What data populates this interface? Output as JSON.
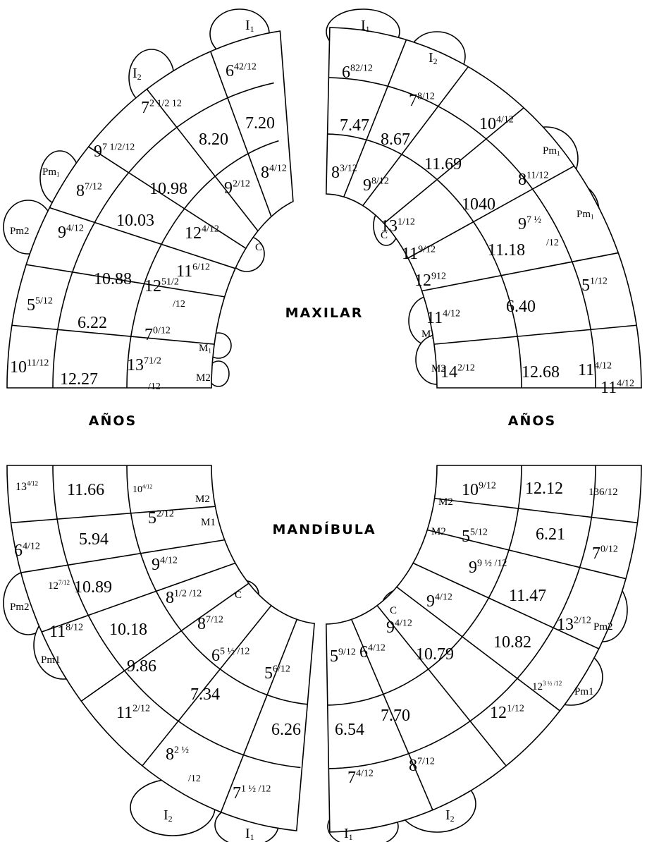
{
  "maxilar": {
    "title": "MAXILAR",
    "upper_left": {
      "teeth": [
        {
          "base": "I",
          "sub": "1"
        },
        {
          "base": "I",
          "sub": "2"
        },
        {
          "base": "Pm",
          "sub": "1"
        },
        {
          "text": "Pm2"
        },
        {
          "text": "C"
        },
        {
          "base": "M",
          "sub": "1"
        },
        {
          "text": "M2"
        }
      ],
      "ages": [
        {
          "base": "6",
          "sup": "42/12"
        },
        {
          "base": "7",
          "sup": "2 1/2 12"
        },
        {
          "text": "7.20"
        },
        {
          "base": "9",
          "sup": "7 1/2/12"
        },
        {
          "text": "8.20"
        },
        {
          "base": "8",
          "sup": "7/12"
        },
        {
          "text": "10.98"
        },
        {
          "base": "9",
          "sup": "2/12"
        },
        {
          "base": "8",
          "sup": "4/12"
        },
        {
          "base": "9",
          "sup": "4/12"
        },
        {
          "text": "10.03"
        },
        {
          "base": "12",
          "sup": "4/12"
        },
        {
          "base": "11",
          "sup": "6/12"
        },
        {
          "text": "10.88"
        },
        {
          "base": "12",
          "sup": "51/2",
          "cont": "/12"
        },
        {
          "base": "5",
          "sup": "5/12"
        },
        {
          "text": "6.22"
        },
        {
          "base": "7",
          "sup": "0/12"
        },
        {
          "base": "10",
          "sup": "11/12"
        },
        {
          "text": "12.27"
        },
        {
          "base": "13",
          "sup": "71/2",
          "cont": "/12"
        }
      ]
    },
    "upper_right": {
      "teeth": [
        {
          "base": "I",
          "sub": "1"
        },
        {
          "base": "I",
          "sub": "2"
        },
        {
          "base": "Pm",
          "sub": "1"
        },
        {
          "base": "Pm",
          "sub": "1"
        },
        {
          "text": "C"
        },
        {
          "base": "M",
          "sub": "1"
        },
        {
          "text": "M2"
        }
      ],
      "ages": [
        {
          "base": "6",
          "sup": "82/12"
        },
        {
          "base": "7",
          "sup": "8/12"
        },
        {
          "text": "7.47"
        },
        {
          "text": "8.67"
        },
        {
          "base": "10",
          "sup": "4/12"
        },
        {
          "base": "8",
          "sup": "3/12"
        },
        {
          "base": "9",
          "sup": "8/12"
        },
        {
          "text": "11.69"
        },
        {
          "base": "8",
          "sup": "11/12"
        },
        {
          "base": "13",
          "sup": "1/12"
        },
        {
          "text": "1040"
        },
        {
          "base": "9",
          "sup": "7 ½",
          "cont": "/12"
        },
        {
          "base": "11",
          "sup": "9/12"
        },
        {
          "base": "12",
          "sup": "912"
        },
        {
          "text": "11.18"
        },
        {
          "base": "5",
          "sup": "1/12"
        },
        {
          "base": "11",
          "sup": "4/12"
        },
        {
          "text": "6.40"
        },
        {
          "base": "14",
          "sup": "2/12"
        },
        {
          "text": "12.68"
        },
        {
          "base": "11",
          "sup": "4/12"
        },
        {
          "base": "11",
          "sup": "4/12"
        }
      ]
    }
  },
  "age_labels": [
    "AÑOS",
    "AÑOS"
  ],
  "mandibula": {
    "title": "MANDÍBULA",
    "lower_left": {
      "teeth": [
        {
          "text": "M2"
        },
        {
          "text": "M1"
        },
        {
          "text": "Pm2"
        },
        {
          "text": "C"
        },
        {
          "text": "Pm1"
        },
        {
          "base": "I",
          "sub": "2"
        },
        {
          "base": "I",
          "sub": "1"
        }
      ],
      "ages": [
        {
          "base": "13",
          "sup": "4/12"
        },
        {
          "text": "11.66"
        },
        {
          "base": "10",
          "sup": "4/12"
        },
        {
          "base": "5",
          "sup": "2/12"
        },
        {
          "base": "6",
          "sup": "4/12"
        },
        {
          "text": "5.94"
        },
        {
          "base": "9",
          "sup": "4/12"
        },
        {
          "base": "12",
          "sup": "7/12"
        },
        {
          "text": "10.89"
        },
        {
          "base": "8",
          "sup": "1/2 /12"
        },
        {
          "base": "11",
          "sup": "8/12"
        },
        {
          "text": "10.18"
        },
        {
          "base": "8",
          "sup": "7/12"
        },
        {
          "base": "6",
          "sup": "5 ½ /12"
        },
        {
          "text": "9.86"
        },
        {
          "base": "5",
          "sup": "6/12"
        },
        {
          "text": "7.34"
        },
        {
          "base": "11",
          "sup": "2/12"
        },
        {
          "text": "6.26"
        },
        {
          "base": "8",
          "sup": "2 ½",
          "cont": "/12"
        },
        {
          "base": "7",
          "sup": "1 ½ /12"
        }
      ]
    },
    "lower_right": {
      "teeth": [
        {
          "text": "M2"
        },
        {
          "text": "M2"
        },
        {
          "text": "C"
        },
        {
          "text": "Pm2"
        },
        {
          "text": "Pm1"
        },
        {
          "base": "I",
          "sub": "2"
        },
        {
          "base": "I",
          "sub": "1"
        }
      ],
      "ages": [
        {
          "base": "10",
          "sup": "9/12"
        },
        {
          "text": "12.12"
        },
        {
          "text": "136/12"
        },
        {
          "base": "5",
          "sup": "5/12"
        },
        {
          "text": "6.21"
        },
        {
          "base": "7",
          "sup": "0/12"
        },
        {
          "base": "9",
          "sup": "9 ½ /12"
        },
        {
          "text": "11.47"
        },
        {
          "base": "13",
          "sup": "2/12"
        },
        {
          "base": "9",
          "sup": "4/12"
        },
        {
          "text": "10.82"
        },
        {
          "base": "9",
          "sup": "4/12"
        },
        {
          "base": "6",
          "sup": "4/12"
        },
        {
          "base": "5",
          "sup": "9/12"
        },
        {
          "text": "10.79"
        },
        {
          "base": "12",
          "sup": "3 ½ /12"
        },
        {
          "base": "12",
          "sup": "1/12"
        },
        {
          "text": "7.70"
        },
        {
          "text": "6.54"
        },
        {
          "base": "8",
          "sup": "7/12"
        },
        {
          "base": "7",
          "sup": "4/12"
        }
      ]
    }
  }
}
